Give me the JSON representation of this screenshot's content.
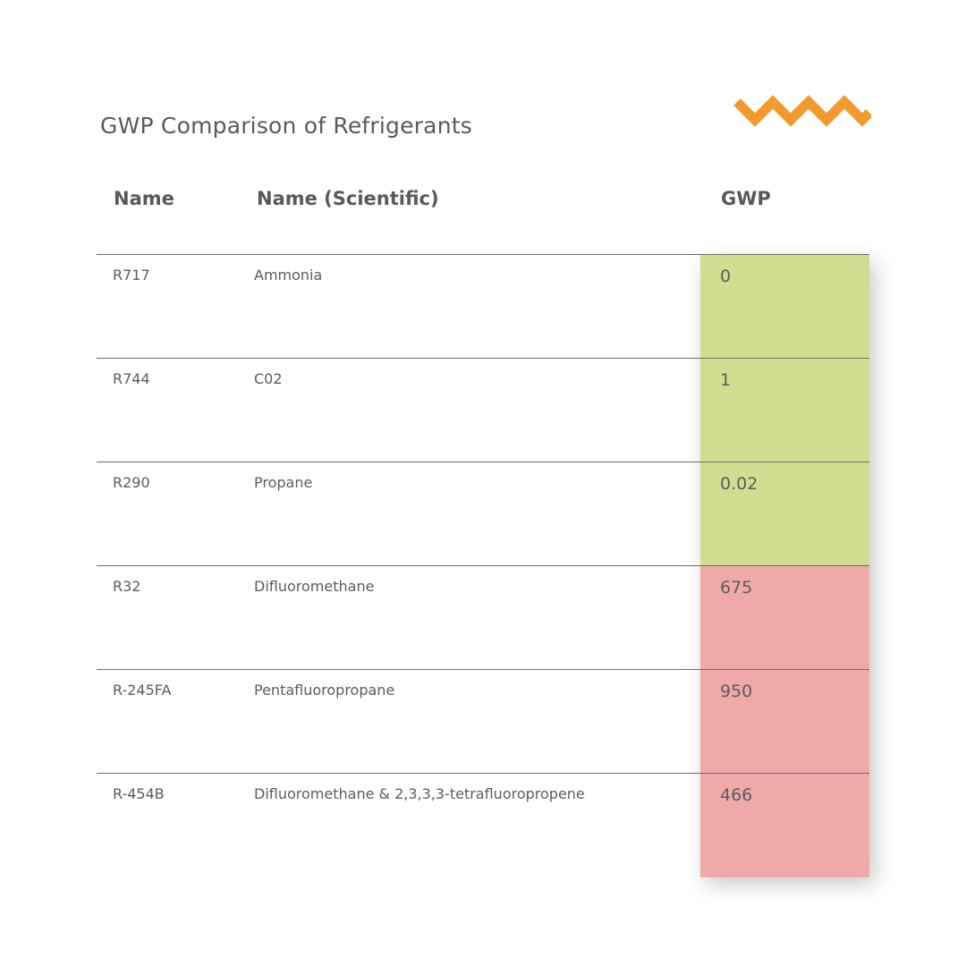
{
  "title": "GWP Comparison of Refrigerants",
  "logo": {
    "icon": "zigzag-logo-icon",
    "color": "#f39a2e"
  },
  "colors": {
    "low_gwp": "#d2dd92",
    "high_gwp": "#f0a9a9"
  },
  "chart_data": {
    "type": "table",
    "title": "GWP Comparison of Refrigerants",
    "columns": [
      "Name",
      "Name (Scientific)",
      "GWP"
    ],
    "rows": [
      {
        "name": "R717",
        "scientific": "Ammonia",
        "gwp": "0",
        "level": "low"
      },
      {
        "name": "R744",
        "scientific": "C02",
        "gwp": "1",
        "level": "low"
      },
      {
        "name": "R290",
        "scientific": "Propane",
        "gwp": "0.02",
        "level": "low"
      },
      {
        "name": "R32",
        "scientific": "Difluoromethane",
        "gwp": "675",
        "level": "high"
      },
      {
        "name": "R-245FA",
        "scientific": "Pentafluoropropane",
        "gwp": "950",
        "level": "high"
      },
      {
        "name": "R-454B",
        "scientific": "Difluoromethane & 2,3,3,3-tetrafluoropropene",
        "gwp": "466",
        "level": "high"
      }
    ]
  }
}
